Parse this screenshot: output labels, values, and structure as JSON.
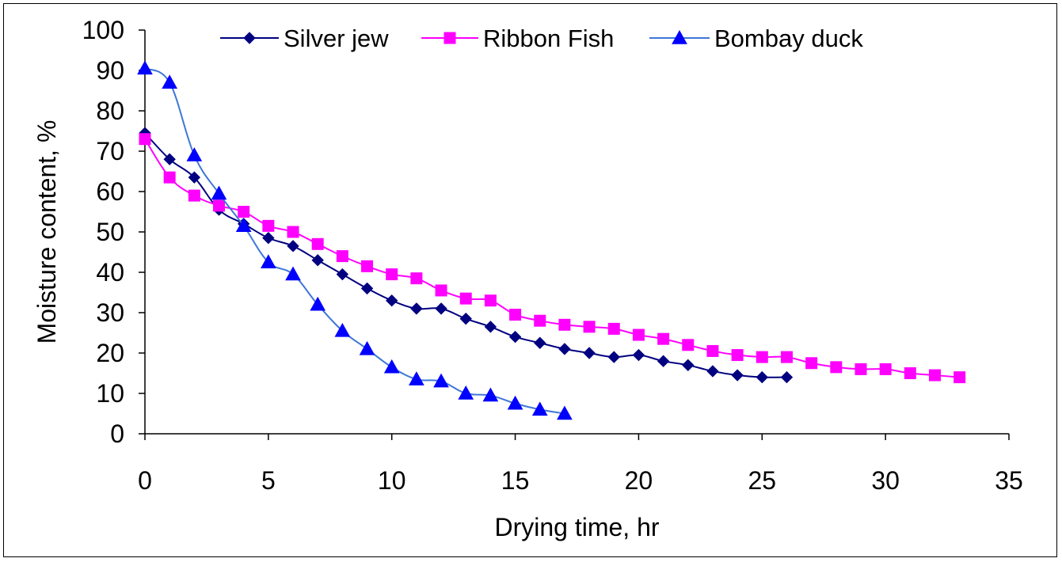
{
  "chart_data": {
    "type": "line",
    "title": "",
    "xlabel": "Drying time, hr",
    "ylabel": "Moisture content, %",
    "xlim": [
      0,
      35
    ],
    "ylim": [
      0,
      100
    ],
    "xticks": [
      0,
      5,
      10,
      15,
      20,
      25,
      30,
      35
    ],
    "yticks": [
      0,
      10,
      20,
      30,
      40,
      50,
      60,
      70,
      80,
      90,
      100
    ],
    "legend_position": "top",
    "series": [
      {
        "name": "Silver jew",
        "color": "#000080",
        "marker": "diamond",
        "x": [
          0,
          1,
          2,
          3,
          4,
          5,
          6,
          7,
          8,
          9,
          10,
          11,
          12,
          13,
          14,
          15,
          16,
          17,
          18,
          19,
          20,
          21,
          22,
          23,
          24,
          25,
          26
        ],
        "y": [
          74.5,
          68,
          63.5,
          55.5,
          52,
          48.5,
          46.5,
          43,
          39.5,
          36,
          33,
          31,
          31,
          28.5,
          26.5,
          24,
          22.5,
          21,
          20,
          19,
          19.5,
          18,
          17,
          15.5,
          14.5,
          14,
          14
        ]
      },
      {
        "name": "Ribbon Fish",
        "color": "#ff00ff",
        "marker": "square",
        "x": [
          0,
          1,
          2,
          3,
          4,
          5,
          6,
          7,
          8,
          9,
          10,
          11,
          12,
          13,
          14,
          15,
          16,
          17,
          18,
          19,
          20,
          21,
          22,
          23,
          24,
          25,
          26,
          27,
          28,
          29,
          30,
          31,
          32,
          33
        ],
        "y": [
          73,
          63.5,
          59,
          56.5,
          55,
          51.5,
          50,
          47,
          44,
          41.5,
          39.5,
          38.5,
          35.5,
          33.5,
          33,
          29.5,
          28,
          27,
          26.5,
          26,
          24.5,
          23.5,
          22,
          20.5,
          19.5,
          19,
          19,
          17.5,
          16.5,
          16,
          16,
          15,
          14.5,
          14
        ]
      },
      {
        "name": "Bombay duck",
        "color": "#3f76d6",
        "marker": "triangle",
        "x": [
          0,
          1,
          2,
          3,
          4,
          5,
          6,
          7,
          8,
          9,
          10,
          11,
          12,
          13,
          14,
          15,
          16,
          17
        ],
        "y": [
          90.5,
          87,
          69,
          59.5,
          51.5,
          42.5,
          39.5,
          32,
          25.5,
          21,
          16.5,
          13.5,
          13,
          10,
          9.5,
          7.5,
          6,
          5
        ]
      }
    ]
  }
}
